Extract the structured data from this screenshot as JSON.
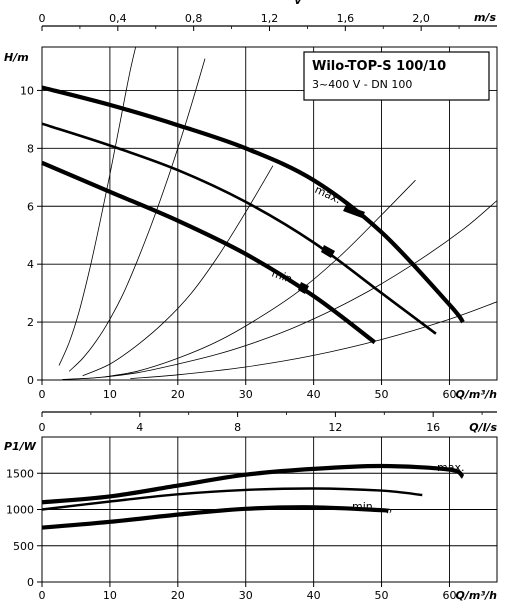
{
  "chart_data": [
    {
      "type": "line",
      "title": "Wilo-TOP-S 100/10",
      "subtitle": "3~400 V - DN 100",
      "ylabel": "H/m",
      "xlabel": "Q/m³/h",
      "xlim": [
        0,
        67
      ],
      "ylim": [
        0,
        11.5
      ],
      "x_ticks": [
        "0",
        "10",
        "20",
        "30",
        "40",
        "50",
        "60"
      ],
      "y_ticks": [
        "0",
        "2",
        "4",
        "6",
        "8",
        "10"
      ],
      "top_axis": {
        "unit": "m/s",
        "partial_label": "v",
        "ticks": [
          "0",
          "0,4",
          "0,8",
          "1,2",
          "1,6",
          "2,0"
        ],
        "max": 2.4
      },
      "q_ls_axis": {
        "unit": "Q/l/s",
        "ticks": [
          "0",
          "4",
          "8",
          "12",
          "16"
        ],
        "max": 18.61
      },
      "series": [
        {
          "name": "max.",
          "x": [
            0,
            10,
            20,
            30,
            40,
            50,
            60,
            62
          ],
          "y": [
            10.1,
            9.5,
            8.8,
            8.0,
            6.9,
            5.1,
            2.6,
            2.0
          ]
        },
        {
          "x": [
            0,
            10,
            20,
            30,
            40,
            50,
            58
          ],
          "y": [
            8.85,
            8.1,
            7.25,
            6.15,
            4.75,
            3.0,
            1.6
          ]
        },
        {
          "name": "min.",
          "x": [
            0,
            10,
            20,
            30,
            40,
            49
          ],
          "y": [
            7.5,
            6.5,
            5.5,
            4.35,
            2.9,
            1.3
          ]
        }
      ],
      "system_curves": [
        {
          "x": [
            2.5,
            4,
            5.5,
            7,
            8.5,
            10,
            11.5,
            13,
            14.5,
            16
          ],
          "y": [
            0.5,
            1.3,
            2.4,
            3.8,
            5.4,
            7.1,
            8.9,
            10.7,
            12.2,
            13.8
          ]
        },
        {
          "x": [
            4,
            6,
            8,
            10,
            12,
            14,
            16,
            18,
            20,
            22,
            24
          ],
          "y": [
            0.3,
            0.75,
            1.35,
            2.1,
            3.0,
            4.1,
            5.3,
            6.6,
            8.0,
            9.5,
            11.1
          ]
        },
        {
          "x": [
            6,
            10,
            14,
            18,
            22,
            26,
            30,
            34
          ],
          "y": [
            0.15,
            0.55,
            1.2,
            2.0,
            3.0,
            4.3,
            5.8,
            7.4
          ]
        },
        {
          "x": [
            9,
            14,
            20,
            26,
            32,
            38,
            44,
            50,
            55
          ],
          "y": [
            0.1,
            0.3,
            0.75,
            1.35,
            2.15,
            3.1,
            4.3,
            5.7,
            6.9
          ]
        },
        {
          "x": [
            13,
            20,
            30,
            40,
            50,
            60,
            67
          ],
          "y": [
            0.05,
            0.18,
            0.45,
            0.85,
            1.4,
            2.1,
            2.7
          ]
        },
        {
          "x": [
            3,
            8,
            14,
            20,
            26,
            32,
            38,
            46,
            54,
            62,
            67
          ],
          "y": [
            0.02,
            0.08,
            0.25,
            0.55,
            0.9,
            1.35,
            1.9,
            2.8,
            3.9,
            5.2,
            6.2
          ]
        }
      ]
    },
    {
      "type": "line",
      "ylabel": "P1/W",
      "xlabel": "Q/m³/h",
      "xlim": [
        0,
        67
      ],
      "ylim": [
        0,
        2000
      ],
      "x_ticks": [
        "0",
        "10",
        "20",
        "30",
        "40",
        "50",
        "60"
      ],
      "y_ticks": [
        "0",
        "500",
        "1000",
        "1500"
      ],
      "series": [
        {
          "name": "max.",
          "x": [
            0,
            10,
            20,
            30,
            40,
            50,
            60,
            62
          ],
          "y": [
            1100,
            1180,
            1330,
            1480,
            1560,
            1600,
            1550,
            1450
          ]
        },
        {
          "x": [
            0,
            10,
            20,
            30,
            40,
            50,
            56
          ],
          "y": [
            1000,
            1110,
            1210,
            1270,
            1290,
            1260,
            1200
          ]
        },
        {
          "name": "min.",
          "x": [
            0,
            10,
            20,
            30,
            40,
            50,
            51
          ],
          "y": [
            750,
            830,
            930,
            1010,
            1030,
            990,
            975
          ]
        }
      ]
    }
  ]
}
